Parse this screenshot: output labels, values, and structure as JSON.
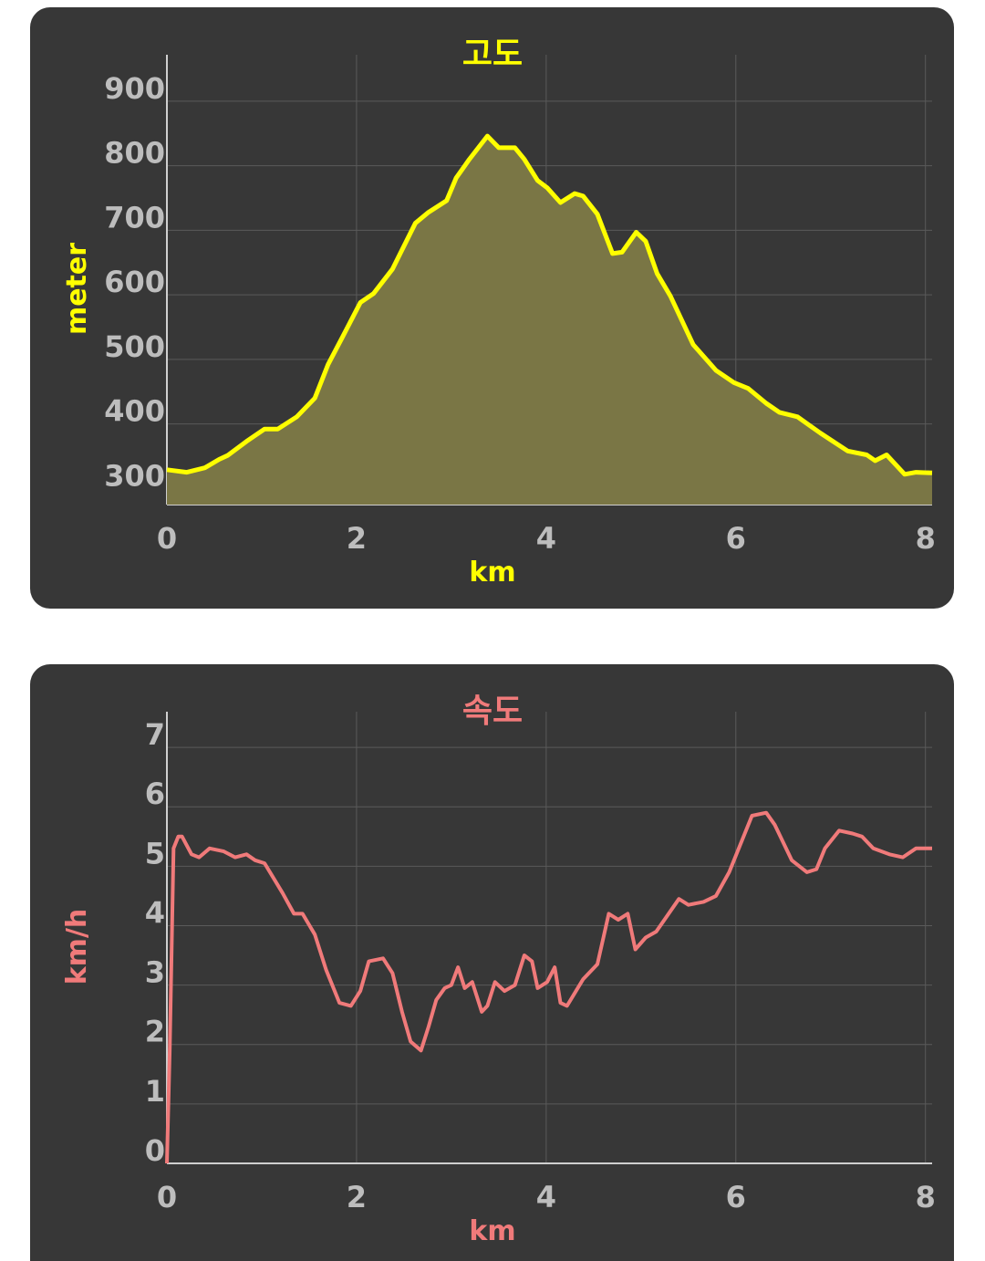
{
  "chart_data": [
    {
      "type": "area",
      "title": "고도",
      "xlabel": "km",
      "ylabel": "meter",
      "color": "#ffff00",
      "fill_color": "#7a7645",
      "x": [
        0,
        0.21,
        0.4,
        0.55,
        0.64,
        0.84,
        1.03,
        1.17,
        1.37,
        1.56,
        1.7,
        1.85,
        2.04,
        2.18,
        2.38,
        2.62,
        2.76,
        2.95,
        3.05,
        3.19,
        3.38,
        3.5,
        3.67,
        3.77,
        3.91,
        4.01,
        4.15,
        4.3,
        4.39,
        4.54,
        4.7,
        4.8,
        4.95,
        5.05,
        5.17,
        5.31,
        5.55,
        5.79,
        5.98,
        6.13,
        6.32,
        6.46,
        6.65,
        6.89,
        7.18,
        7.38,
        7.47,
        7.59,
        7.78,
        7.9,
        8.07
      ],
      "values": [
        329,
        325,
        332,
        345,
        351,
        373,
        392,
        392,
        411,
        440,
        492,
        534,
        588,
        602,
        640,
        711,
        728,
        746,
        781,
        810,
        846,
        828,
        828,
        810,
        777,
        766,
        743,
        757,
        753,
        725,
        664,
        666,
        697,
        683,
        633,
        598,
        523,
        483,
        464,
        455,
        432,
        418,
        411,
        386,
        358,
        352,
        343,
        352,
        322,
        325,
        324
      ],
      "xlim": [
        0,
        8.07
      ],
      "xticks": [
        0,
        2,
        4,
        6,
        8
      ],
      "ylim": [
        275,
        972
      ],
      "yticks": [
        300,
        400,
        500,
        600,
        700,
        800,
        900
      ],
      "grid": true
    },
    {
      "type": "line",
      "title": "속도",
      "xlabel": "km",
      "ylabel": "km/h",
      "color": "#f07a7a",
      "x": [
        0,
        0.03,
        0.07,
        0.12,
        0.16,
        0.26,
        0.34,
        0.45,
        0.6,
        0.72,
        0.84,
        0.93,
        1.03,
        1.22,
        1.34,
        1.43,
        1.56,
        1.68,
        1.82,
        1.94,
        2.04,
        2.13,
        2.28,
        2.38,
        2.48,
        2.57,
        2.68,
        2.76,
        2.84,
        2.93,
        3.0,
        3.07,
        3.14,
        3.22,
        3.32,
        3.38,
        3.46,
        3.56,
        3.67,
        3.77,
        3.85,
        3.91,
        4.01,
        4.09,
        4.15,
        4.22,
        4.39,
        4.54,
        4.66,
        4.76,
        4.86,
        4.94,
        5.05,
        5.16,
        5.4,
        5.5,
        5.66,
        5.79,
        5.93,
        6.17,
        6.32,
        6.41,
        6.59,
        6.75,
        6.85,
        6.94,
        7.09,
        7.23,
        7.33,
        7.45,
        7.62,
        7.76,
        7.9,
        8.07
      ],
      "values": [
        0,
        1.9,
        5.3,
        5.5,
        5.5,
        5.2,
        5.15,
        5.3,
        5.25,
        5.15,
        5.2,
        5.1,
        5.05,
        4.55,
        4.2,
        4.2,
        3.85,
        3.25,
        2.7,
        2.65,
        2.9,
        3.4,
        3.45,
        3.2,
        2.55,
        2.05,
        1.9,
        2.3,
        2.75,
        2.95,
        3.0,
        3.3,
        2.95,
        3.05,
        2.55,
        2.65,
        3.05,
        2.9,
        3.0,
        3.5,
        3.4,
        2.95,
        3.05,
        3.3,
        2.7,
        2.65,
        3.1,
        3.35,
        4.2,
        4.1,
        4.2,
        3.6,
        3.8,
        3.9,
        4.45,
        4.35,
        4.4,
        4.5,
        4.9,
        5.85,
        5.9,
        5.7,
        5.1,
        4.9,
        4.95,
        5.3,
        5.6,
        5.55,
        5.5,
        5.3,
        5.2,
        5.15,
        5.3,
        5.3
      ],
      "xlim": [
        0,
        8.07
      ],
      "xticks": [
        0,
        2,
        4,
        6,
        8
      ],
      "ylim": [
        0,
        7.6
      ],
      "yticks": [
        0,
        1,
        2,
        3,
        4,
        5,
        6,
        7
      ],
      "grid": true
    }
  ]
}
